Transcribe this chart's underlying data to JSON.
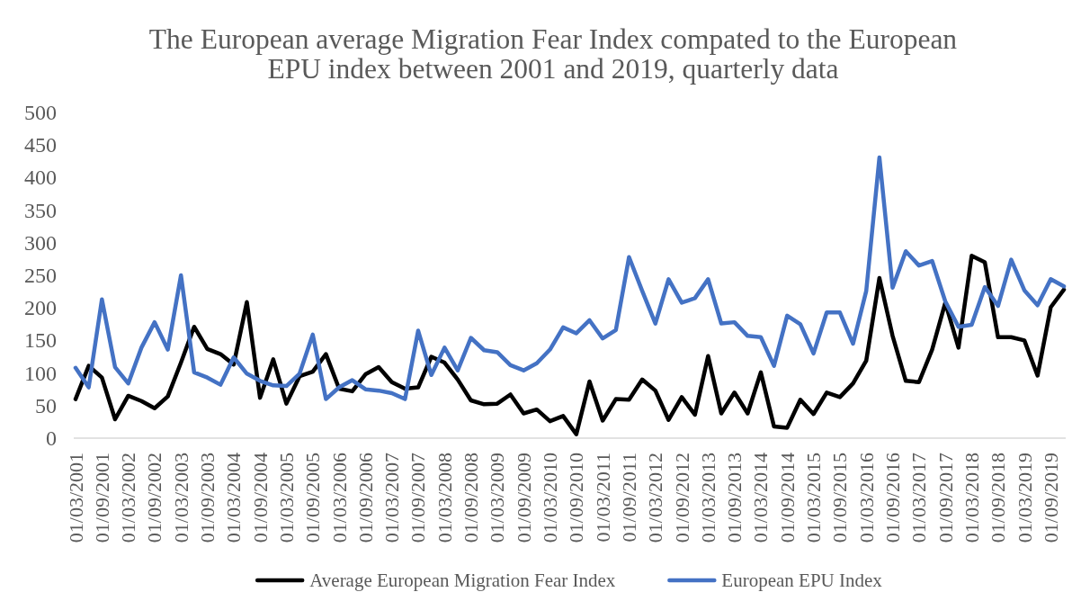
{
  "chart_data": {
    "type": "line",
    "title": "The European average Migration Fear Index compated to the European\nEPU index between 2001 and 2019, quarterly data",
    "categories": [
      "01/03/2001",
      null,
      "01/09/2001",
      null,
      "01/03/2002",
      null,
      "01/09/2002",
      null,
      "01/03/2003",
      null,
      "01/09/2003",
      null,
      "01/03/2004",
      null,
      "01/09/2004",
      null,
      "01/03/2005",
      null,
      "01/09/2005",
      null,
      "01/03/2006",
      null,
      "01/09/2006",
      null,
      "01/03/2007",
      null,
      "01/09/2007",
      null,
      "01/03/2008",
      null,
      "01/09/2008",
      null,
      "01/03/2009",
      null,
      "01/09/2009",
      null,
      "01/03/2010",
      null,
      "01/09/2010",
      null,
      "01/03/2011",
      null,
      "01/09/2011",
      null,
      "01/03/2012",
      null,
      "01/09/2012",
      null,
      "01/03/2013",
      null,
      "01/09/2013",
      null,
      "01/03/2014",
      null,
      "01/09/2014",
      null,
      "01/03/2015",
      null,
      "01/09/2015",
      null,
      "01/03/2016",
      null,
      "01/09/2016",
      null,
      "01/03/2017",
      null,
      "01/09/2017",
      null,
      "01/03/2018",
      null,
      "01/09/2018",
      null,
      "01/03/2019",
      null,
      "01/09/2019",
      null
    ],
    "series": [
      {
        "name": "Average European Migration Fear Index",
        "color": "#000000",
        "values": [
          60,
          111,
          93,
          29,
          65,
          57,
          46,
          64,
          116,
          171,
          137,
          129,
          113,
          209,
          62,
          121,
          53,
          95,
          102,
          129,
          76,
          72,
          98,
          109,
          86,
          76,
          78,
          125,
          116,
          90,
          58,
          52,
          53,
          67,
          38,
          44,
          26,
          34,
          6,
          87,
          27,
          60,
          59,
          90,
          73,
          28,
          63,
          36,
          126,
          38,
          70,
          38,
          101,
          18,
          16,
          59,
          37,
          70,
          63,
          84,
          119,
          246,
          157,
          88,
          86,
          136,
          208,
          139,
          280,
          270,
          155,
          155,
          150,
          96,
          201,
          228
        ]
      },
      {
        "name": "European EPU Index",
        "color": "#4472c4",
        "values": [
          108,
          78,
          213,
          109,
          84,
          139,
          178,
          136,
          250,
          101,
          93,
          82,
          124,
          99,
          88,
          81,
          80,
          99,
          159,
          60,
          78,
          89,
          75,
          73,
          69,
          60,
          165,
          97,
          139,
          104,
          154,
          135,
          132,
          112,
          104,
          115,
          136,
          170,
          161,
          181,
          153,
          166,
          278,
          226,
          176,
          244,
          208,
          215,
          244,
          176,
          178,
          157,
          155,
          111,
          188,
          175,
          130,
          193,
          193,
          145,
          226,
          431,
          231,
          287,
          265,
          272,
          210,
          171,
          174,
          232,
          203,
          274,
          227,
          204,
          244,
          233
        ]
      }
    ],
    "ylim": [
      0,
      500
    ],
    "yticks": [
      0,
      50,
      100,
      150,
      200,
      250,
      300,
      350,
      400,
      450,
      500
    ],
    "legend": "bottom"
  }
}
